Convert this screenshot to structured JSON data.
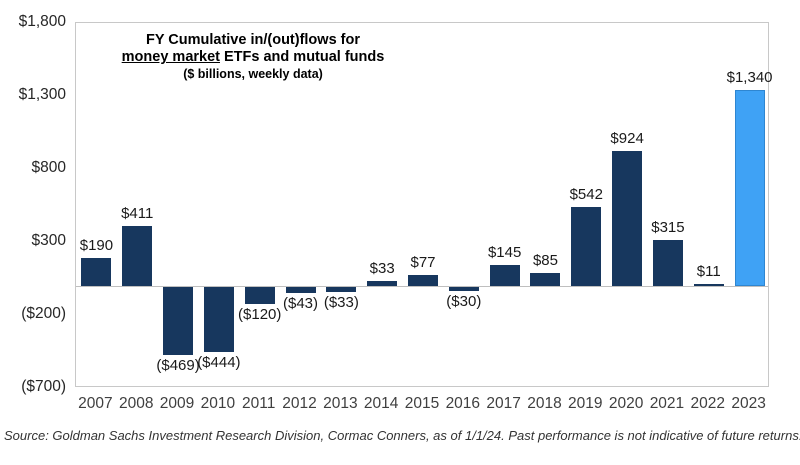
{
  "chart": {
    "title_line1": "FY Cumulative in/(out)flows for",
    "title_line2_underlined": "money market",
    "title_line2_rest": " ETFs and mutual funds",
    "title_line3": "($ billions, weekly data)"
  },
  "chart_data": {
    "type": "bar",
    "title": "FY Cumulative in/(out)flows for money market ETFs and mutual funds",
    "subtitle": "($ billions, weekly data)",
    "xlabel": "",
    "ylabel": "",
    "categories": [
      "2007",
      "2008",
      "2009",
      "2010",
      "2011",
      "2012",
      "2013",
      "2014",
      "2015",
      "2016",
      "2017",
      "2018",
      "2019",
      "2020",
      "2021",
      "2022",
      "2023"
    ],
    "values": [
      190,
      411,
      -469,
      -444,
      -120,
      -43,
      -33,
      33,
      77,
      -30,
      145,
      85,
      542,
      924,
      315,
      11,
      1340
    ],
    "bar_labels": [
      "$190",
      "$411",
      "($469)",
      "($444)",
      "($120)",
      "($43)",
      "($33)",
      "$33",
      "$77",
      "($30)",
      "$145",
      "$85",
      "$542",
      "$924",
      "$315",
      "$11",
      "$1,340"
    ],
    "yticks": [
      {
        "value": 1800,
        "label": "$1,800"
      },
      {
        "value": 1300,
        "label": "$1,300"
      },
      {
        "value": 800,
        "label": "$800"
      },
      {
        "value": 300,
        "label": "$300"
      },
      {
        "value": -200,
        "label": "($200)"
      },
      {
        "value": -700,
        "label": "($700)"
      }
    ],
    "ylim": [
      -700,
      1800
    ],
    "grid": false,
    "legend": false,
    "bar_color": "#17375E",
    "highlight_color": "#3FA2F5",
    "highlight_border_color": "#2E86D1",
    "highlight_index": 16
  },
  "footer": {
    "source": "Source: Goldman Sachs Investment Research Division, Cormac Conners, as of 1/1/24. Past performance is not indicative of future returns."
  }
}
